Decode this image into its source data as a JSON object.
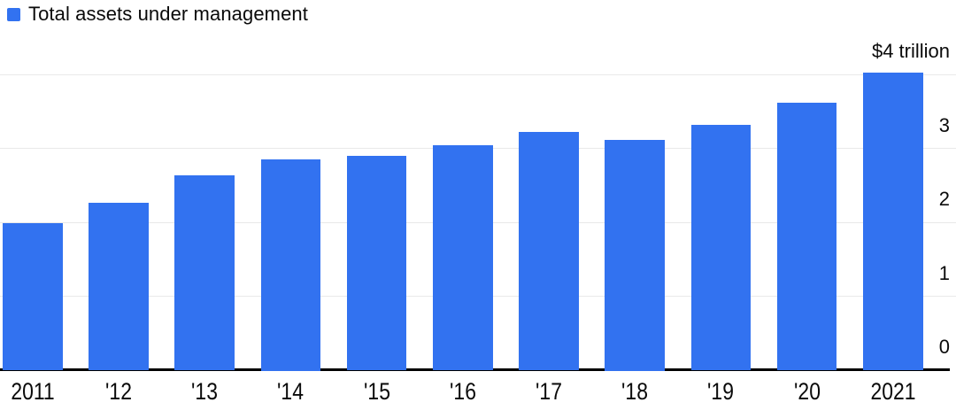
{
  "legend": {
    "label": "Total assets under management"
  },
  "colors": {
    "bar": "#3272f0",
    "legend_swatch": "#3272f0",
    "gridline": "#e9e9e9",
    "axis_line": "#000000",
    "text": "#0a0a0a",
    "background": "#ffffff"
  },
  "chart_data": {
    "type": "bar",
    "title": "",
    "series_name": "Total assets under management",
    "unit": "USD trillions",
    "categories": [
      "2011",
      "'12",
      "'13",
      "'14",
      "'15",
      "'16",
      "'17",
      "'18",
      "'19",
      "'20",
      "2021"
    ],
    "values": [
      2.0,
      2.27,
      2.64,
      2.86,
      2.91,
      3.05,
      3.23,
      3.13,
      3.33,
      3.63,
      4.03
    ],
    "xlabel": "",
    "ylabel": "",
    "y_axis": {
      "side": "right",
      "ticks": [
        0,
        1,
        2,
        3,
        4
      ],
      "tick_labels": [
        "0",
        "1",
        "2",
        "3",
        "$4 trillion"
      ],
      "min": 0,
      "max": 4.47
    },
    "grid": true,
    "legend_position": "top-left",
    "bar_color": "#3272f0"
  }
}
